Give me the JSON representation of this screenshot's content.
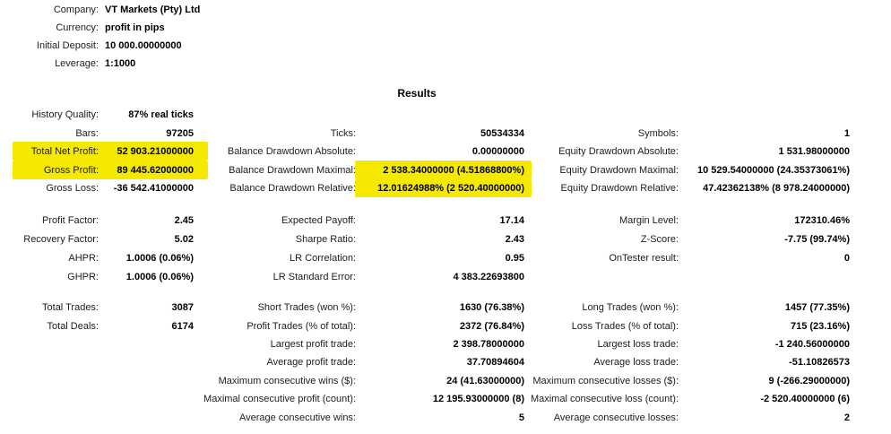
{
  "header": {
    "company": {
      "label": "Company:",
      "value": "VT Markets (Pty) Ltd"
    },
    "currency": {
      "label": "Currency:",
      "value": "profit in pips"
    },
    "initial_deposit": {
      "label": "Initial Deposit:",
      "value": "10 000.00000000"
    },
    "leverage": {
      "label": "Leverage:",
      "value": "1:1000"
    }
  },
  "results_title": "Results",
  "highlight_color": "#f6e900",
  "highlighted_items": [
    "total_net_profit",
    "gross_profit",
    "balance_drawdown_maximal_value",
    "balance_drawdown_relative_value"
  ],
  "stats": {
    "history_quality": {
      "label": "History Quality:",
      "value": "87% real ticks"
    },
    "bars": {
      "label": "Bars:",
      "value": "97205"
    },
    "ticks": {
      "label": "Ticks:",
      "value": "50534334"
    },
    "symbols": {
      "label": "Symbols:",
      "value": "1"
    },
    "total_net_profit": {
      "label": "Total Net Profit:",
      "value": "52 903.21000000",
      "highlighted": true
    },
    "balance_drawdown_absolute": {
      "label": "Balance Drawdown Absolute:",
      "value": "0.00000000"
    },
    "equity_drawdown_absolute": {
      "label": "Equity Drawdown Absolute:",
      "value": "1 531.98000000"
    },
    "gross_profit": {
      "label": "Gross Profit:",
      "value": "89 445.62000000",
      "highlighted": true
    },
    "balance_drawdown_maximal": {
      "label": "Balance Drawdown Maximal:",
      "value": "2 538.34000000 (4.51868800%)",
      "highlighted": true
    },
    "equity_drawdown_maximal": {
      "label": "Equity Drawdown Maximal:",
      "value": "10 529.54000000 (24.35373061%)"
    },
    "gross_loss": {
      "label": "Gross Loss:",
      "value": "-36 542.41000000"
    },
    "balance_drawdown_relative": {
      "label": "Balance Drawdown Relative:",
      "value": "12.01624988% (2 520.40000000)",
      "highlighted": true
    },
    "equity_drawdown_relative": {
      "label": "Equity Drawdown Relative:",
      "value": "47.42362138% (8 978.24000000)"
    },
    "profit_factor": {
      "label": "Profit Factor:",
      "value": "2.45"
    },
    "expected_payoff": {
      "label": "Expected Payoff:",
      "value": "17.14"
    },
    "margin_level": {
      "label": "Margin Level:",
      "value": "172310.46%"
    },
    "recovery_factor": {
      "label": "Recovery Factor:",
      "value": "5.02"
    },
    "sharpe_ratio": {
      "label": "Sharpe Ratio:",
      "value": "2.43"
    },
    "z_score": {
      "label": "Z-Score:",
      "value": "-7.75 (99.74%)"
    },
    "ahpr": {
      "label": "AHPR:",
      "value": "1.0006 (0.06%)"
    },
    "lr_correlation": {
      "label": "LR Correlation:",
      "value": "0.95"
    },
    "ontester_result": {
      "label": "OnTester result:",
      "value": "0"
    },
    "ghpr": {
      "label": "GHPR:",
      "value": "1.0006 (0.06%)"
    },
    "lr_standard_error": {
      "label": "LR Standard Error:",
      "value": "4 383.22693800"
    },
    "total_trades": {
      "label": "Total Trades:",
      "value": "3087"
    },
    "short_trades": {
      "label": "Short Trades (won %):",
      "value": "1630 (76.38%)"
    },
    "long_trades": {
      "label": "Long Trades (won %):",
      "value": "1457 (77.35%)"
    },
    "total_deals": {
      "label": "Total Deals:",
      "value": "6174"
    },
    "profit_trades": {
      "label": "Profit Trades (% of total):",
      "value": "2372 (76.84%)"
    },
    "loss_trades": {
      "label": "Loss Trades (% of total):",
      "value": "715 (23.16%)"
    },
    "largest_profit_trade": {
      "label": "Largest profit trade:",
      "value": "2 398.78000000"
    },
    "largest_loss_trade": {
      "label": "Largest loss trade:",
      "value": "-1 240.56000000"
    },
    "average_profit_trade": {
      "label": "Average profit trade:",
      "value": "37.70894604"
    },
    "average_loss_trade": {
      "label": "Average loss trade:",
      "value": "-51.10826573"
    },
    "max_consecutive_wins": {
      "label": "Maximum consecutive wins ($):",
      "value": "24 (41.63000000)"
    },
    "max_consecutive_losses": {
      "label": "Maximum consecutive losses ($):",
      "value": "9 (-266.29000000)"
    },
    "maximal_consecutive_profit": {
      "label": "Maximal consecutive profit (count):",
      "value": "12 195.93000000 (8)"
    },
    "maximal_consecutive_loss": {
      "label": "Maximal consecutive loss (count):",
      "value": "-2 520.40000000 (6)"
    },
    "average_consecutive_wins": {
      "label": "Average consecutive wins:",
      "value": "5"
    },
    "average_consecutive_losses": {
      "label": "Average consecutive losses:",
      "value": "2"
    }
  }
}
